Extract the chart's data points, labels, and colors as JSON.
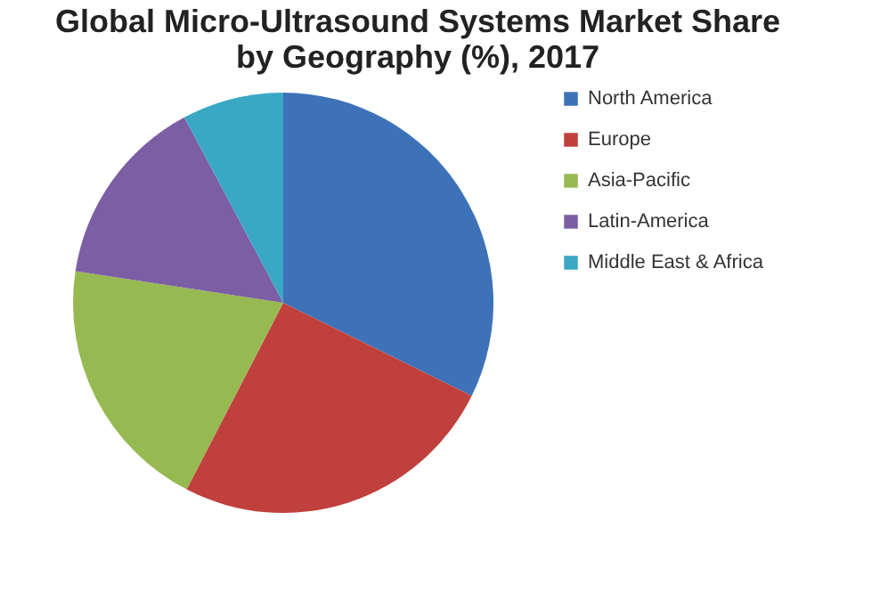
{
  "chart_data": {
    "type": "pie",
    "title": "Global Micro-Ultrasound Systems  Market Share by Geography (%), 2017",
    "categories": [
      "North America",
      "Europe",
      "Asia-Pacific",
      "Latin-America",
      "Middle East & Africa"
    ],
    "values": [
      32.3,
      25.3,
      19.8,
      14.8,
      7.8
    ],
    "colors": [
      "#3d72b8",
      "#c0403d",
      "#97b952",
      "#7b5ea3",
      "#3aa8c4"
    ],
    "legend": "right"
  }
}
